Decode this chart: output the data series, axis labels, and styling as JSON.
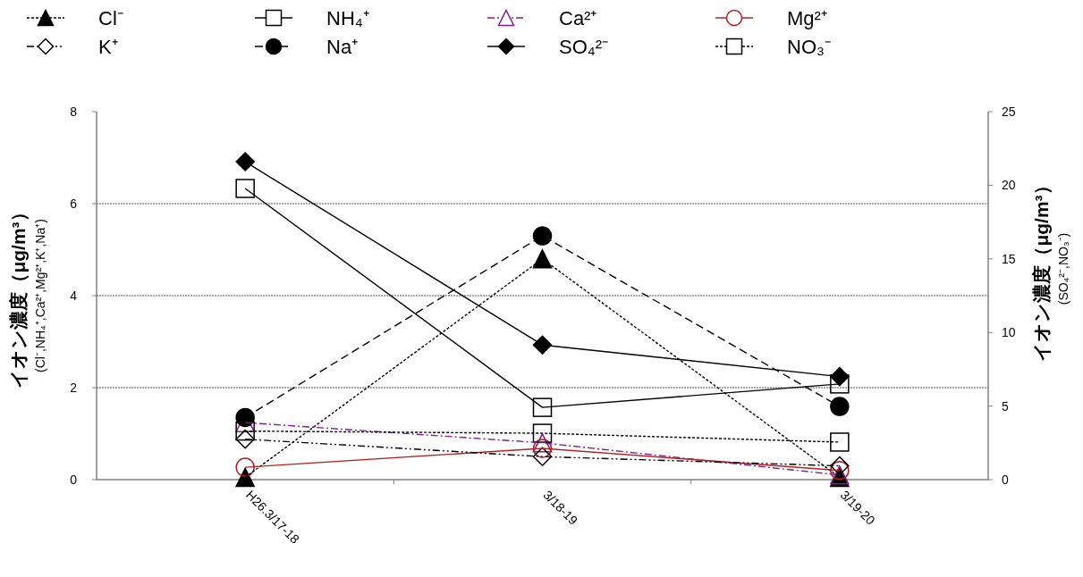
{
  "chart_data": {
    "type": "line",
    "categories": [
      "H26.3/17-18",
      "3/18-19",
      "3/19-20"
    ],
    "ylabel": "イオン濃度（μg/m³）\n(Cl⁻,NH₄⁺,Ca²⁺,Mg²⁺,K⁺,Na⁺)",
    "y2label": "イオン濃度（μg/m³）\n(SO₄²⁻,NO₃⁻)",
    "ylim": [
      0,
      8
    ],
    "yticks": [
      0,
      2,
      4,
      6,
      8
    ],
    "y2lim": [
      0,
      25
    ],
    "y2ticks": [
      0,
      5,
      10,
      15,
      20,
      25
    ],
    "grid": "y",
    "legend": "top",
    "series": [
      {
        "name": "Cl⁻",
        "color": "#000000",
        "values": [
          0.05,
          4.8,
          0.05
        ],
        "marker": "triangle",
        "line_style": "dotted"
      },
      {
        "name": "NH₄⁺",
        "color": "#000000",
        "values": [
          6.33,
          1.57,
          2.08
        ],
        "marker": "square",
        "line_style": "solid"
      },
      {
        "name": "Ca²⁺",
        "color": "#7f1f8f",
        "values": [
          1.24,
          0.8,
          0.1
        ],
        "marker": "triangle",
        "line_style": "dashdot"
      },
      {
        "name": "Mg²⁺",
        "color": "#b22222",
        "values": [
          0.27,
          0.68,
          0.2
        ],
        "marker": "circle",
        "line_style": "solid"
      },
      {
        "name": "K⁺",
        "color": "#000000",
        "values": [
          0.88,
          0.5,
          0.3
        ],
        "marker": "diamond",
        "line_style": "dashdotdot"
      },
      {
        "name": "Na⁺",
        "color": "#000000",
        "values": [
          1.35,
          5.3,
          1.59
        ],
        "marker": "circle",
        "line_style": "dashed"
      },
      {
        "name": "SO₄²⁻",
        "color": "#000000",
        "values": [
          21.6,
          9.15,
          7.0
        ],
        "marker": "diamond",
        "line_style": "solid",
        "axis": "y2"
      },
      {
        "name": "NO₃⁻",
        "color": "#000000",
        "values": [
          3.3,
          3.15,
          2.55
        ],
        "marker": "square",
        "line_style": "dotted",
        "axis": "y2"
      }
    ]
  }
}
